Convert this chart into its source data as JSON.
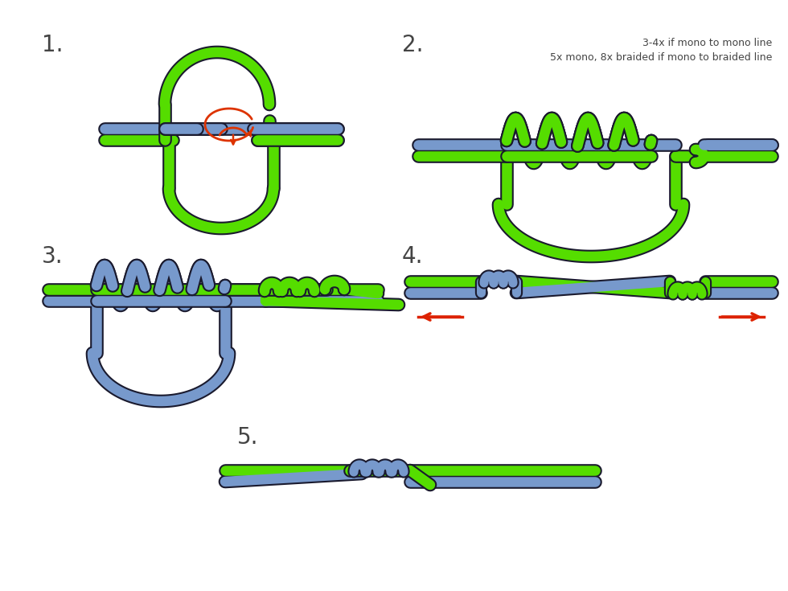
{
  "green_color": "#55dd00",
  "blue_color": "#7799cc",
  "orange_color": "#dd3300",
  "red_color": "#dd2200",
  "bg_color": "#ffffff",
  "text_color": "#444444",
  "dark_outline": "#1a1a2e",
  "step_labels": [
    "1.",
    "2.",
    "3.",
    "4.",
    "5."
  ],
  "note_line1": "3-4x if mono to mono line",
  "note_line2": "5x mono, 8x braided if mono to braided line"
}
